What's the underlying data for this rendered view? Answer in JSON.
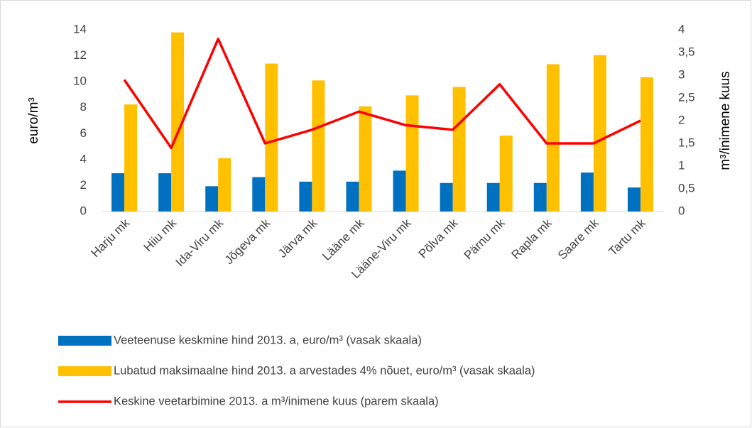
{
  "chart_data": {
    "type": "bar",
    "categories": [
      "Harju mk",
      "Hiiu mk",
      "Ida-Viru mk",
      "Jõgeva mk",
      "Järva mk",
      "Lääne mk",
      "Lääne-Viru mk",
      "Põlva mk",
      "Pärnu mk",
      "Rapla mk",
      "Saare mk",
      "Tartu mk"
    ],
    "series": [
      {
        "name": "Veeteenuse keskmine hind 2013. a, euro/m³ (vasak skaala)",
        "type": "bar",
        "color": "#0070c0",
        "values": [
          2.95,
          2.95,
          1.95,
          2.65,
          2.3,
          2.3,
          3.15,
          2.2,
          2.2,
          2.2,
          3.0,
          1.85
        ]
      },
      {
        "name": "Lubatud maksimaalne hind 2013. a arvestades 4% nõuet, euro/m³ (vasak skaala)",
        "type": "bar",
        "color": "#ffc000",
        "values": [
          8.25,
          13.8,
          4.1,
          11.4,
          10.1,
          8.1,
          8.95,
          9.6,
          5.85,
          11.35,
          12.05,
          10.35
        ]
      },
      {
        "name": "Keskine veetarbimine 2013. a m³/inimene kuus (parem skaala)",
        "type": "line",
        "axis": "y2",
        "color": "#ff0000",
        "values": [
          2.9,
          1.4,
          3.8,
          1.5,
          1.8,
          2.2,
          1.9,
          1.8,
          2.8,
          1.5,
          1.5,
          2.0
        ]
      }
    ],
    "ylabel": "euro/m³",
    "y2label": "m³/inimene kuus",
    "ylim": [
      0,
      14
    ],
    "yticks": [
      0,
      2,
      4,
      6,
      8,
      10,
      12,
      14
    ],
    "y2lim": [
      0,
      4
    ],
    "y2ticks": [
      0,
      {
        "value": 0.5,
        "label": "0,5"
      },
      1,
      {
        "value": 1.5,
        "label": "1,5"
      },
      2,
      {
        "value": 2.5,
        "label": "2,5"
      },
      3,
      {
        "value": 3.5,
        "label": "3,5"
      },
      4
    ],
    "legend": "bottom"
  }
}
